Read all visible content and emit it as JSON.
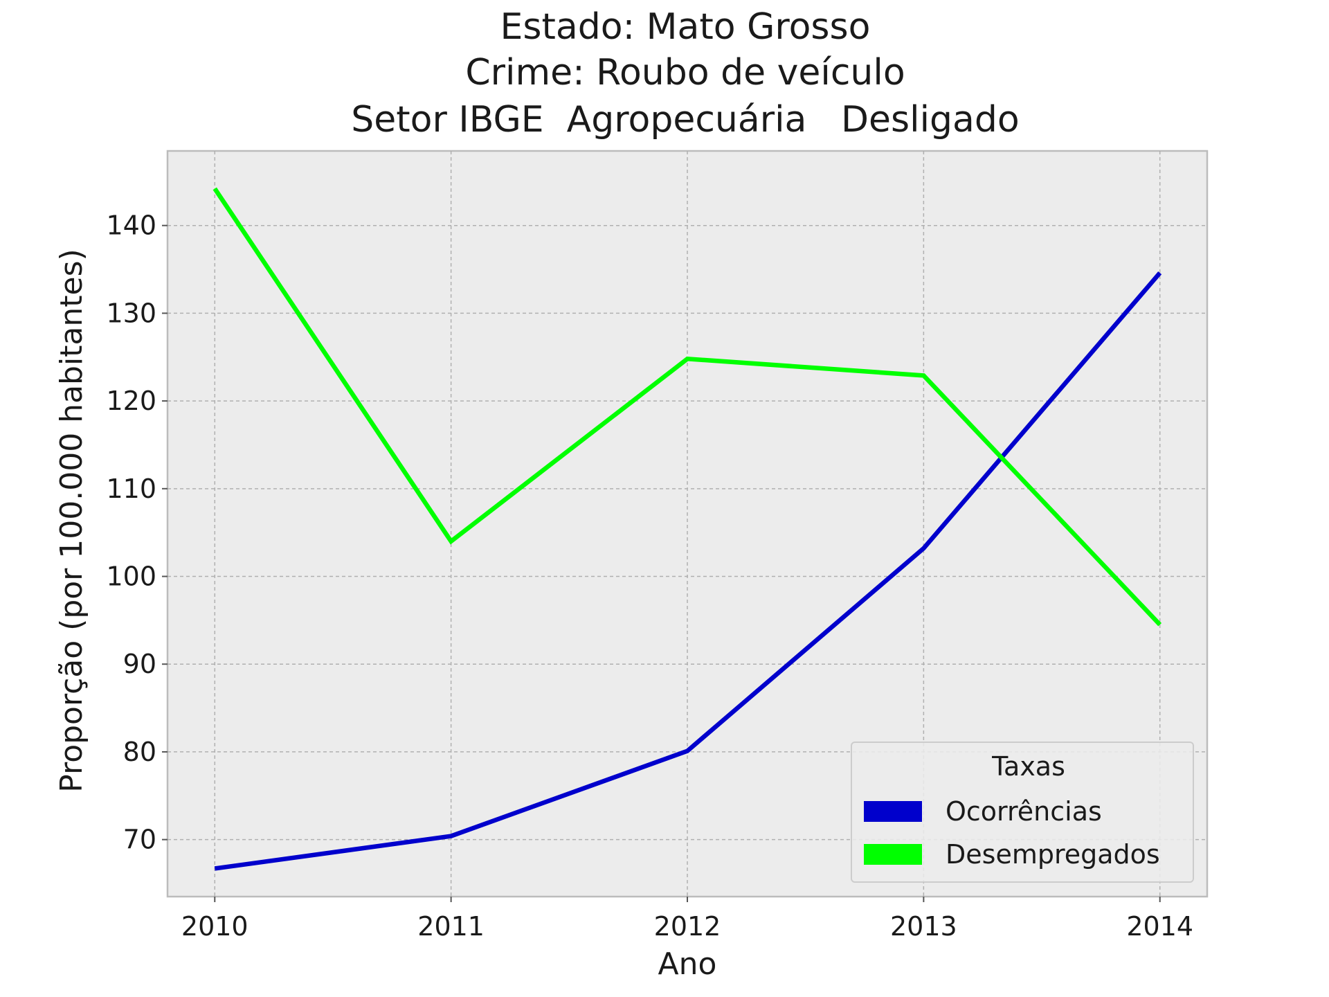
{
  "chart_data": {
    "type": "line",
    "title_lines": [
      "Estado: Mato Grosso",
      "Crime: Roubo de veículo",
      "Setor IBGE  Agropecuária   Desligado"
    ],
    "xlabel": "Ano",
    "ylabel": "Proporção (por 100.000 habitantes)",
    "x": [
      "2010",
      "2011",
      "2012",
      "2013",
      "2014"
    ],
    "xlim": [
      2009.8,
      2014.2
    ],
    "ylim": [
      63.5,
      148.5
    ],
    "yticks": [
      70,
      80,
      90,
      100,
      110,
      120,
      130,
      140
    ],
    "grid": true,
    "legend": {
      "title": "Taxas",
      "position": "bottom-right"
    },
    "series": [
      {
        "name": "Ocorrências",
        "color": "#0000cc",
        "values": [
          66.7,
          70.4,
          80.1,
          103.2,
          134.6
        ]
      },
      {
        "name": "Desempregados",
        "color": "#00ff00",
        "values": [
          144.2,
          104.0,
          124.8,
          122.9,
          94.5
        ]
      }
    ]
  }
}
